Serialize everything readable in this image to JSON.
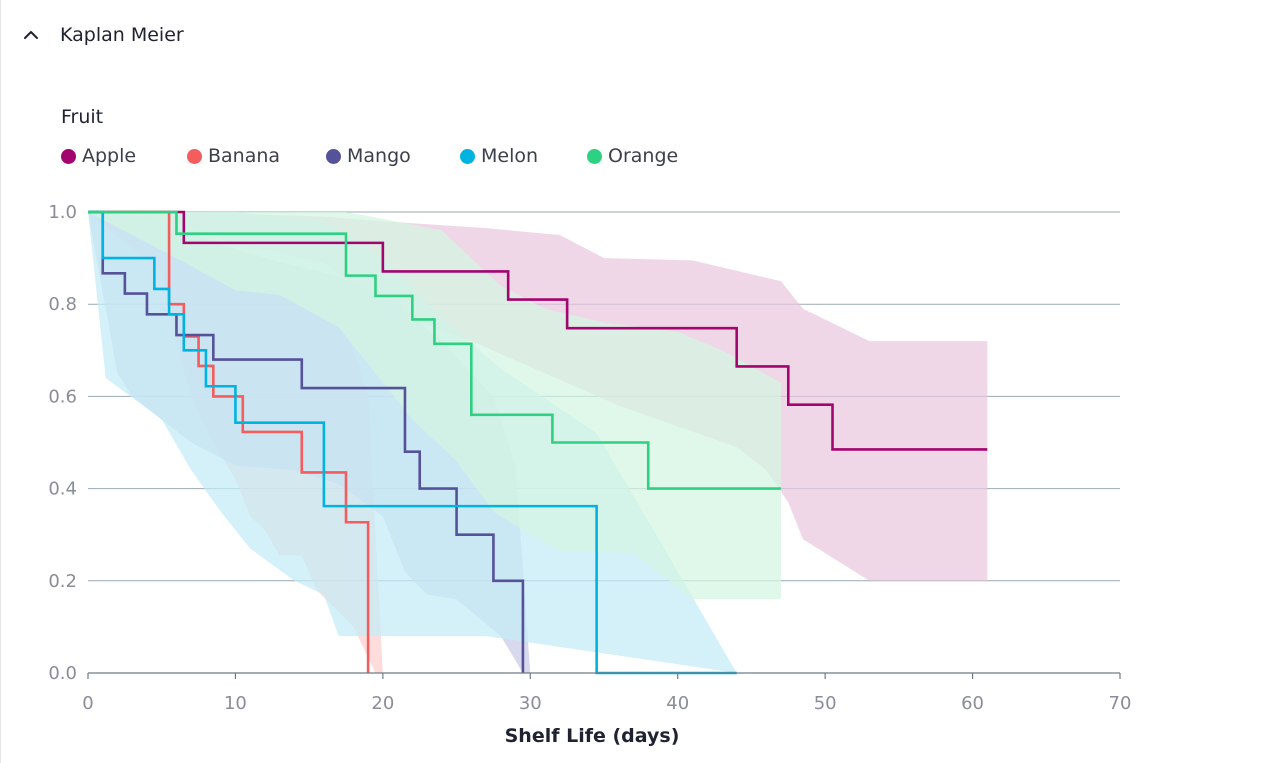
{
  "panel": {
    "title": "Kaplan Meier",
    "toggle_icon": "chevron-up-icon"
  },
  "legend": {
    "title": "Fruit"
  },
  "chart_data": {
    "type": "line",
    "subtype": "kaplan-meier step survival curves with confidence bands",
    "title": "",
    "legend_title": "Fruit",
    "xlabel": "Shelf Life (days)",
    "ylabel": "",
    "xlim": [
      0,
      70
    ],
    "ylim": [
      0,
      1
    ],
    "x_ticks": [
      "0",
      "10",
      "20",
      "30",
      "40",
      "50",
      "60",
      "70"
    ],
    "y_ticks": [
      "0.0",
      "0.2",
      "0.4",
      "0.6",
      "0.8",
      "1.0"
    ],
    "grid": "horizontal",
    "legend_position": "top-left",
    "series": [
      {
        "name": "Apple",
        "color": "#a3056e",
        "band_color": "#e9c8df",
        "steps": [
          [
            0,
            1.0
          ],
          [
            6.5,
            1.0
          ],
          [
            6.5,
            0.933
          ],
          [
            20.0,
            0.933
          ],
          [
            20.0,
            0.871
          ],
          [
            28.5,
            0.871
          ],
          [
            28.5,
            0.81
          ],
          [
            32.5,
            0.81
          ],
          [
            32.5,
            0.748
          ],
          [
            44.0,
            0.748
          ],
          [
            44.0,
            0.665
          ],
          [
            47.5,
            0.665
          ],
          [
            47.5,
            0.582
          ],
          [
            50.5,
            0.582
          ],
          [
            50.5,
            0.485
          ],
          [
            61.0,
            0.485
          ]
        ],
        "lower": [
          [
            0,
            1.0
          ],
          [
            6.5,
            0.97
          ],
          [
            10,
            0.93
          ],
          [
            16,
            0.89
          ],
          [
            20,
            0.79
          ],
          [
            26,
            0.72
          ],
          [
            31,
            0.65
          ],
          [
            36,
            0.58
          ],
          [
            44,
            0.49
          ],
          [
            46,
            0.44
          ],
          [
            47.5,
            0.37
          ],
          [
            48.5,
            0.29
          ],
          [
            53,
            0.2
          ],
          [
            61,
            0.2
          ]
        ],
        "upper": [
          [
            0,
            1.0
          ],
          [
            6.5,
            1.0
          ],
          [
            16,
            0.99
          ],
          [
            20,
            0.98
          ],
          [
            27,
            0.965
          ],
          [
            32,
            0.95
          ],
          [
            35,
            0.9
          ],
          [
            41,
            0.895
          ],
          [
            47,
            0.85
          ],
          [
            48.5,
            0.79
          ],
          [
            53,
            0.72
          ],
          [
            61,
            0.72
          ]
        ]
      },
      {
        "name": "Banana",
        "color": "#f35d5d",
        "band_color": "#fcd0cf",
        "steps": [
          [
            0,
            1.0
          ],
          [
            5.5,
            1.0
          ],
          [
            5.5,
            0.8
          ],
          [
            6.5,
            0.8
          ],
          [
            6.5,
            0.73
          ],
          [
            7.5,
            0.73
          ],
          [
            7.5,
            0.666
          ],
          [
            8.5,
            0.666
          ],
          [
            8.5,
            0.6
          ],
          [
            10.5,
            0.6
          ],
          [
            10.5,
            0.523
          ],
          [
            14.5,
            0.523
          ],
          [
            14.5,
            0.435
          ],
          [
            17.5,
            0.435
          ],
          [
            17.5,
            0.327
          ],
          [
            19.0,
            0.327
          ],
          [
            19.0,
            0.0
          ]
        ],
        "lower": [
          [
            0,
            1.0
          ],
          [
            5.0,
            0.87
          ],
          [
            6,
            0.72
          ],
          [
            7,
            0.6
          ],
          [
            8.5,
            0.5
          ],
          [
            10,
            0.42
          ],
          [
            11,
            0.34
          ],
          [
            12,
            0.31
          ],
          [
            13,
            0.255
          ],
          [
            14.5,
            0.255
          ],
          [
            15.5,
            0.18
          ],
          [
            18,
            0.1
          ],
          [
            19.5,
            0.0
          ]
        ],
        "upper": [
          [
            0,
            1.0
          ],
          [
            5.5,
            1.0
          ],
          [
            6.5,
            0.99
          ],
          [
            8,
            0.96
          ],
          [
            10,
            0.9
          ],
          [
            13,
            0.85
          ],
          [
            15,
            0.8
          ],
          [
            17,
            0.76
          ],
          [
            18,
            0.7
          ],
          [
            19,
            0.6
          ],
          [
            19.5,
            0.3
          ],
          [
            20,
            0.0
          ]
        ]
      },
      {
        "name": "Mango",
        "color": "#55529a",
        "band_color": "#cacbe6",
        "steps": [
          [
            0,
            1.0
          ],
          [
            1.0,
            1.0
          ],
          [
            1.0,
            0.867
          ],
          [
            2.5,
            0.867
          ],
          [
            2.5,
            0.823
          ],
          [
            4.0,
            0.823
          ],
          [
            4.0,
            0.778
          ],
          [
            6.0,
            0.778
          ],
          [
            6.0,
            0.733
          ],
          [
            8.5,
            0.733
          ],
          [
            8.5,
            0.68
          ],
          [
            14.5,
            0.68
          ],
          [
            14.5,
            0.618
          ],
          [
            21.5,
            0.618
          ],
          [
            21.5,
            0.48
          ],
          [
            22.5,
            0.48
          ],
          [
            22.5,
            0.4
          ],
          [
            25.0,
            0.4
          ],
          [
            25.0,
            0.3
          ],
          [
            27.5,
            0.3
          ],
          [
            27.5,
            0.2
          ],
          [
            29.5,
            0.2
          ],
          [
            29.5,
            0.0
          ]
        ],
        "lower": [
          [
            0,
            1.0
          ],
          [
            2,
            0.65
          ],
          [
            3,
            0.6
          ],
          [
            5,
            0.55
          ],
          [
            7,
            0.5
          ],
          [
            10,
            0.45
          ],
          [
            14,
            0.44
          ],
          [
            17,
            0.41
          ],
          [
            20,
            0.34
          ],
          [
            21.5,
            0.22
          ],
          [
            23,
            0.17
          ],
          [
            25,
            0.16
          ],
          [
            28,
            0.08
          ],
          [
            29.5,
            0.0
          ]
        ],
        "upper": [
          [
            0,
            1.0
          ],
          [
            4,
            0.99
          ],
          [
            6,
            0.965
          ],
          [
            9,
            0.93
          ],
          [
            12,
            0.9
          ],
          [
            17,
            0.86
          ],
          [
            21,
            0.8
          ],
          [
            24,
            0.72
          ],
          [
            27.5,
            0.6
          ],
          [
            29,
            0.45
          ],
          [
            30,
            0.0
          ]
        ]
      },
      {
        "name": "Melon",
        "color": "#00b3e1",
        "band_color": "#c3ecf7",
        "steps": [
          [
            0,
            1.0
          ],
          [
            1.0,
            1.0
          ],
          [
            1.0,
            0.9
          ],
          [
            4.5,
            0.9
          ],
          [
            4.5,
            0.833
          ],
          [
            5.5,
            0.833
          ],
          [
            5.5,
            0.778
          ],
          [
            6.5,
            0.778
          ],
          [
            6.5,
            0.7
          ],
          [
            8.0,
            0.7
          ],
          [
            8.0,
            0.622
          ],
          [
            10.0,
            0.622
          ],
          [
            10.0,
            0.543
          ],
          [
            16.0,
            0.543
          ],
          [
            16.0,
            0.362
          ],
          [
            34.5,
            0.362
          ],
          [
            34.5,
            0.0
          ],
          [
            44.0,
            0.0
          ]
        ],
        "lower": [
          [
            0,
            1.0
          ],
          [
            1.2,
            0.64
          ],
          [
            5,
            0.55
          ],
          [
            7,
            0.44
          ],
          [
            9,
            0.35
          ],
          [
            11,
            0.27
          ],
          [
            14,
            0.2
          ],
          [
            16,
            0.17
          ],
          [
            17,
            0.08
          ],
          [
            27,
            0.08
          ],
          [
            44,
            0.0
          ]
        ],
        "upper": [
          [
            0,
            1.0
          ],
          [
            10,
            1.0
          ],
          [
            16,
            0.98
          ],
          [
            20,
            0.9
          ],
          [
            24,
            0.77
          ],
          [
            28,
            0.66
          ],
          [
            34.5,
            0.52
          ],
          [
            38,
            0.33
          ],
          [
            44,
            0.0
          ]
        ]
      },
      {
        "name": "Orange",
        "color": "#2ed082",
        "band_color": "#d4f5e2",
        "steps": [
          [
            0,
            1.0
          ],
          [
            6.0,
            1.0
          ],
          [
            6.0,
            0.953
          ],
          [
            17.5,
            0.953
          ],
          [
            17.5,
            0.862
          ],
          [
            19.5,
            0.862
          ],
          [
            19.5,
            0.818
          ],
          [
            22.0,
            0.818
          ],
          [
            22.0,
            0.767
          ],
          [
            23.5,
            0.767
          ],
          [
            23.5,
            0.714
          ],
          [
            26.0,
            0.714
          ],
          [
            26.0,
            0.56
          ],
          [
            31.5,
            0.56
          ],
          [
            31.5,
            0.5
          ],
          [
            38.0,
            0.5
          ],
          [
            38.0,
            0.4
          ],
          [
            47.0,
            0.4
          ]
        ],
        "lower": [
          [
            0,
            1.0
          ],
          [
            6,
            0.9
          ],
          [
            10,
            0.83
          ],
          [
            13,
            0.82
          ],
          [
            17,
            0.75
          ],
          [
            19,
            0.67
          ],
          [
            22,
            0.55
          ],
          [
            25,
            0.46
          ],
          [
            27.5,
            0.35
          ],
          [
            30,
            0.3
          ],
          [
            32,
            0.265
          ],
          [
            37,
            0.26
          ],
          [
            41,
            0.16
          ],
          [
            47,
            0.16
          ]
        ],
        "upper": [
          [
            0,
            1.0
          ],
          [
            17.5,
            1.0
          ],
          [
            20,
            0.985
          ],
          [
            24,
            0.96
          ],
          [
            26,
            0.9
          ],
          [
            28,
            0.84
          ],
          [
            31,
            0.79
          ],
          [
            35,
            0.76
          ],
          [
            40,
            0.74
          ],
          [
            43,
            0.7
          ],
          [
            47,
            0.63
          ]
        ]
      }
    ]
  }
}
